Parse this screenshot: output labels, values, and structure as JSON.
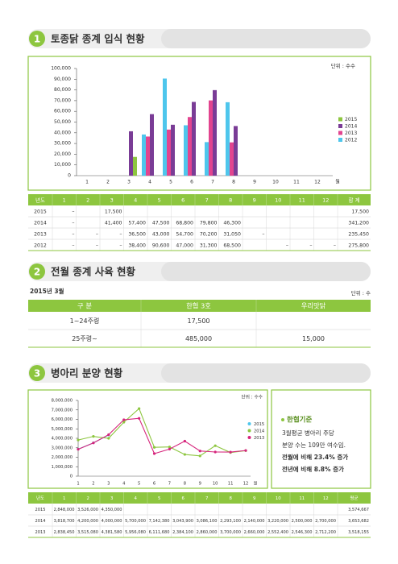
{
  "headings": [
    {
      "number": "1",
      "title": "토종닭 종계 입식 현황"
    },
    {
      "number": "2",
      "title": "전월 종계 사육 현황"
    },
    {
      "number": "3",
      "title": "병아리 분양 현황"
    }
  ],
  "chart_data": [
    {
      "type": "bar",
      "unit": "단위 : 수수",
      "x_label": "월",
      "categories": [
        "1",
        "2",
        "3",
        "4",
        "5",
        "6",
        "7",
        "8",
        "9",
        "10",
        "11",
        "12"
      ],
      "ylim": [
        0,
        100000
      ],
      "yticks": [
        0,
        {
          "value": 10000,
          "label": "10,000"
        },
        {
          "value": 20000,
          "label": "20,000"
        },
        {
          "value": 30000,
          "label": "30,000"
        },
        {
          "value": 40000,
          "label": "40,000"
        },
        {
          "value": 50000,
          "label": "50,000"
        },
        {
          "value": 60000,
          "label": "60,000"
        },
        {
          "value": 70000,
          "label": "70,000"
        },
        {
          "value": 80000,
          "label": "80,000"
        },
        {
          "value": 90000,
          "label": "90,000"
        },
        {
          "value": 100000,
          "label": "100,000"
        }
      ],
      "series": [
        {
          "name": "2015",
          "color": "#8dc63f",
          "values": [
            null,
            null,
            17500,
            null,
            null,
            null,
            null,
            null,
            null,
            null,
            null,
            null
          ]
        },
        {
          "name": "2014",
          "color": "#7a3c96",
          "values": [
            null,
            null,
            41400,
            57400,
            47500,
            68800,
            79800,
            46300,
            null,
            null,
            null,
            null
          ]
        },
        {
          "name": "2013",
          "color": "#e2448f",
          "values": [
            null,
            null,
            null,
            36500,
            43000,
            54700,
            70200,
            31050,
            null,
            null,
            null,
            null
          ]
        },
        {
          "name": "2012",
          "color": "#4ec6ec",
          "values": [
            null,
            null,
            null,
            38400,
            90600,
            47000,
            31300,
            68500,
            null,
            null,
            null,
            null
          ]
        }
      ]
    },
    {
      "type": "line",
      "unit": "단위 : 수수",
      "x_label": "월",
      "categories": [
        "1",
        "2",
        "3",
        "4",
        "5",
        "6",
        "7",
        "8",
        "9",
        "10",
        "11",
        "12"
      ],
      "ylim": [
        0,
        8000000
      ],
      "yticks": [
        0,
        {
          "value": 1000000,
          "label": "1,000,000"
        },
        {
          "value": 2000000,
          "label": "2,000,000"
        },
        {
          "value": 3000000,
          "label": "3,000,000"
        },
        {
          "value": 4000000,
          "label": "4,000,000"
        },
        {
          "value": 5000000,
          "label": "5,000,000"
        },
        {
          "value": 6000000,
          "label": "6,000,000"
        },
        {
          "value": 7000000,
          "label": "7,000,000"
        },
        {
          "value": 8000000,
          "label": "8,000,000"
        }
      ],
      "series": [
        {
          "name": "2015",
          "color": "#4ec6ec",
          "values": [
            2848000,
            3526000,
            4350000,
            null,
            null,
            null,
            null,
            null,
            null,
            null,
            null,
            null
          ]
        },
        {
          "name": "2014",
          "color": "#8dc63f",
          "values": [
            3818700,
            4200000,
            4000000,
            5700000,
            7142380,
            3043900,
            3086100,
            2293100,
            2140000,
            3220000,
            2500000,
            2700000
          ]
        },
        {
          "name": "2013",
          "color": "#d6257c",
          "values": [
            2838450,
            3515080,
            4381580,
            5956080,
            6111680,
            2384100,
            2860000,
            3700000,
            2660000,
            2552400,
            2546300,
            2712200
          ]
        }
      ]
    }
  ],
  "table1": {
    "header": [
      "년도",
      "1",
      "2",
      "3",
      "4",
      "5",
      "6",
      "7",
      "8",
      "9",
      "10",
      "11",
      "12",
      "합 계"
    ],
    "rows": [
      [
        "2015",
        "–",
        null,
        "17,500",
        null,
        null,
        null,
        null,
        null,
        null,
        null,
        null,
        null,
        "17,500"
      ],
      [
        "2014",
        "–",
        null,
        "41,400",
        "57,400",
        "47,500",
        "68,800",
        "79,800",
        "46,300",
        null,
        null,
        null,
        null,
        "341,200"
      ],
      [
        "2013",
        "–",
        "–",
        "–",
        "36,500",
        "43,000",
        "54,700",
        "70,200",
        "31,050",
        "–",
        null,
        null,
        null,
        "235,450"
      ],
      [
        "2012",
        "–",
        "–",
        "–",
        "38,400",
        "90,600",
        "47,000",
        "31,300",
        "68,500",
        null,
        "–",
        "–",
        "–",
        "275,800"
      ]
    ]
  },
  "table2": {
    "date": "2015년 3월",
    "unit": "단위 : 수",
    "header": [
      "구  분",
      "한협 3호",
      "우리맛닭"
    ],
    "rows": [
      [
        "1~24주령",
        "17,500",
        null
      ],
      [
        "25주령~",
        "485,000",
        "15,000"
      ]
    ]
  },
  "note": {
    "title": "한협기준",
    "lines": [
      "3월평균 병아리 주당",
      "분양 수는 109만 여수임.",
      "전월에 비해 23.4% 증가",
      "전년에 비해   8.8% 증가"
    ]
  },
  "table3": {
    "header": [
      "년도",
      "1",
      "2",
      "3",
      "4",
      "5",
      "6",
      "7",
      "8",
      "9",
      "10",
      "11",
      "12",
      "평균"
    ],
    "rows": [
      [
        "2015",
        "2,848,000",
        "3,526,000",
        "4,350,000",
        null,
        null,
        null,
        null,
        null,
        null,
        null,
        null,
        null,
        "3,574,667"
      ],
      [
        "2014",
        "3,818,700",
        "4,200,000",
        "4,000,000",
        "5,700,000",
        "7,142,380",
        "3,043,900",
        "3,086,100",
        "2,293,100",
        "2,140,000",
        "3,220,000",
        "2,500,000",
        "2,700,000",
        "3,653,682"
      ],
      [
        "2013",
        "2,838,450",
        "3,515,080",
        "4,381,580",
        "5,956,080",
        "6,111,680",
        "2,384,100",
        "2,860,000",
        "3,700,000",
        "2,660,000",
        "2,552,400",
        "2,546,300",
        "2,712,200",
        "3,518,155"
      ]
    ]
  }
}
